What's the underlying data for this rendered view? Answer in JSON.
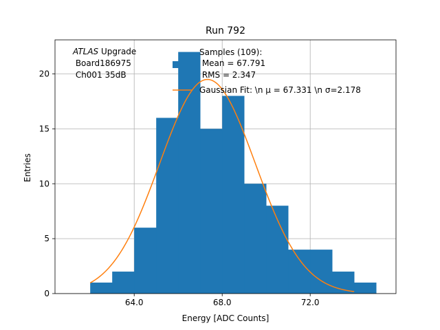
{
  "chart_data": {
    "type": "bar",
    "title": "Run 792",
    "xlabel": "Energy [ADC Counts]",
    "ylabel": "Entries",
    "xlim": [
      60.4,
      75.9
    ],
    "ylim": [
      0,
      23.1
    ],
    "grid": true,
    "xticks": [
      64.0,
      68.0,
      72.0
    ],
    "xtick_labels": [
      "64.0",
      "68.0",
      "72.0"
    ],
    "yticks": [
      0,
      5,
      10,
      15,
      20
    ],
    "ytick_labels": [
      "0",
      "5",
      "10",
      "15",
      "20"
    ],
    "bin_edges": [
      62.0,
      63.0,
      64.0,
      65.0,
      66.0,
      67.0,
      68.0,
      69.0,
      70.0,
      71.0,
      72.0,
      73.0,
      74.0,
      75.0
    ],
    "counts": [
      1,
      2,
      6,
      16,
      22,
      15,
      18,
      10,
      8,
      4,
      4,
      2,
      1
    ],
    "fit": {
      "mu": 67.331,
      "sigma": 2.178,
      "amplitude": 19.5,
      "x_range": [
        62.0,
        74.0
      ]
    },
    "annotation_lines": [
      "ATLAS Upgrade",
      " Board186975",
      " Ch001 35dB"
    ],
    "annotation_italic": "ATLAS",
    "annotation_rest": " Upgrade",
    "legend": {
      "position": "top-right",
      "entries": [
        {
          "lines": [
            "Samples (109):",
            " Mean = 67.791",
            " RMS = 2.347"
          ],
          "marker": "patch",
          "color": "#1f77b4"
        },
        {
          "lines": [
            "Gaussian Fit: \\n μ = 67.331 \\n σ=2.178"
          ],
          "marker": "line",
          "color": "#ff7f0e"
        }
      ]
    },
    "colors": {
      "bars": "#1f77b4",
      "fit": "#ff7f0e",
      "grid": "#b0b0b0"
    }
  }
}
